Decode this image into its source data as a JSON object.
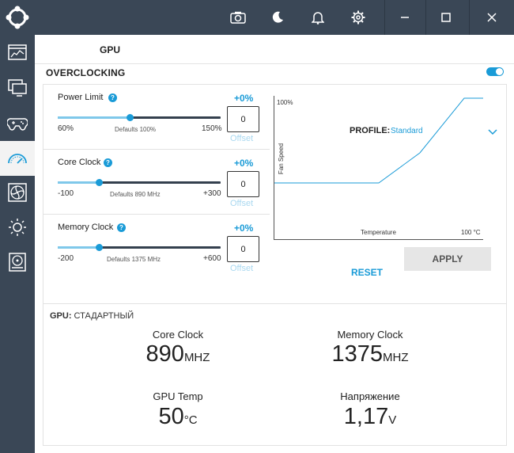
{
  "titlebar": {
    "icons": [
      "logo-icon",
      "camera-icon",
      "moon-icon",
      "bell-icon",
      "gear-icon",
      "minimize-icon",
      "maximize-icon",
      "close-icon"
    ]
  },
  "sidebar": {
    "items": [
      {
        "icon": "dashboard-icon"
      },
      {
        "icon": "monitor-icon"
      },
      {
        "icon": "gamepad-icon"
      },
      {
        "icon": "speedometer-icon",
        "active": true
      },
      {
        "icon": "fan-icon"
      },
      {
        "icon": "brightness-icon"
      },
      {
        "icon": "storage-icon"
      }
    ]
  },
  "header": {
    "gpu_label": "GPU"
  },
  "overclocking": {
    "title": "OVERCLOCKING",
    "enabled": true,
    "sliders": [
      {
        "label": "Power Limit",
        "percent": "+0%",
        "min": "60%",
        "max": "150%",
        "defaults": "Defaults  100%",
        "value": "0",
        "offset_placeholder": "Offset",
        "position": 0.44
      },
      {
        "label": "Core Clock",
        "percent": "+0%",
        "min": "-100",
        "max": "+300",
        "defaults": "Defaults  890 MHz",
        "value": "0",
        "offset_placeholder": "Offset",
        "position": 0.25
      },
      {
        "label": "Memory Clock",
        "percent": "+0%",
        "min": "-200",
        "max": "+600",
        "defaults": "Defaults  1375 MHz",
        "value": "0",
        "offset_placeholder": "Offset",
        "position": 0.25
      }
    ],
    "profile": {
      "label": "PROFILE:",
      "value": "Standard",
      "chart": {
        "y_top_label": "100%",
        "y_axis_label": "Fan Speed",
        "x_axis_label": "Temperature",
        "x_right_label": "100 °C"
      }
    },
    "reset_label": "RESET",
    "apply_label": "APPLY"
  },
  "stats": {
    "title_bold": "GPU:",
    "title_rest": " СТАДАРТНЫЙ",
    "items": [
      {
        "label": "Core Clock",
        "value": "890",
        "unit": "MHZ"
      },
      {
        "label": "Memory Clock",
        "value": "1375",
        "unit": "MHZ"
      },
      {
        "label": "GPU Temp",
        "value": "50",
        "unit": "°C"
      },
      {
        "label": "Напряжение",
        "value": "1,17",
        "unit": "V"
      }
    ]
  }
}
